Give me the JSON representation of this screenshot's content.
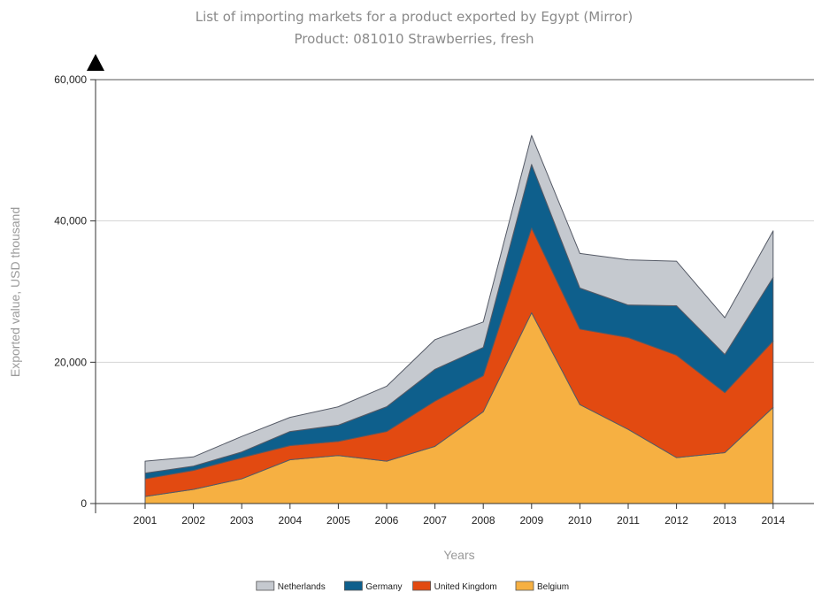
{
  "chart_data": {
    "type": "area",
    "stacked": true,
    "title": "List of importing markets for a product exported by Egypt (Mirror)",
    "subtitle": "Product: 081010 Strawberries, fresh",
    "xlabel": "Years",
    "ylabel": "Exported value, USD thousand",
    "ylim": [
      0,
      60000
    ],
    "yticks": [
      0,
      20000,
      40000,
      60000
    ],
    "ytick_labels": [
      "0",
      "20,000",
      "40,000",
      "60,000"
    ],
    "grid": "horizontal",
    "legend_position": "bottom",
    "categories": [
      "2001",
      "2002",
      "2003",
      "2004",
      "2005",
      "2006",
      "2007",
      "2008",
      "2009",
      "2010",
      "2011",
      "2012",
      "2013",
      "2014"
    ],
    "series": [
      {
        "name": "Belgium",
        "color": "#f6b042",
        "values": [
          1000,
          2000,
          3500,
          6200,
          6800,
          6000,
          8100,
          13000,
          27000,
          14000,
          10500,
          6500,
          7200,
          13600
        ]
      },
      {
        "name": "United Kingdom",
        "color": "#e24a11",
        "values": [
          2500,
          2700,
          3000,
          2000,
          2000,
          4200,
          6400,
          5100,
          12000,
          10700,
          13000,
          14500,
          8500,
          9400
        ]
      },
      {
        "name": "Germany",
        "color": "#0e5f8c",
        "values": [
          800,
          600,
          800,
          2000,
          2300,
          3500,
          4500,
          4000,
          9000,
          5800,
          4600,
          7000,
          5400,
          9000
        ]
      },
      {
        "name": "Netherlands",
        "color": "#c5c9cf",
        "values": [
          1700,
          1300,
          2200,
          2000,
          2600,
          2900,
          4200,
          3600,
          4100,
          4900,
          6400,
          6300,
          5200,
          6600
        ]
      }
    ],
    "legend_order": [
      "Netherlands",
      "Germany",
      "United Kingdom",
      "Belgium"
    ]
  }
}
